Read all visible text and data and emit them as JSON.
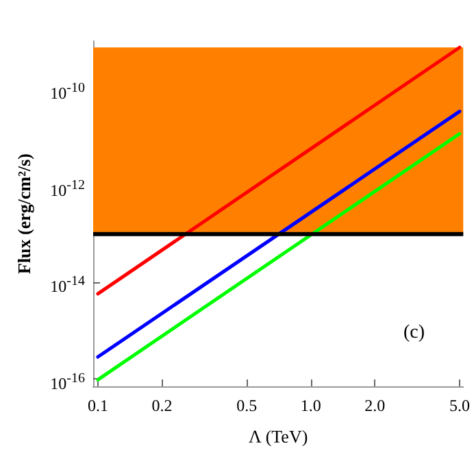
{
  "chart_data": {
    "type": "line",
    "xlabel": "Λ (TeV)",
    "ylabel": "Flux (erg/cm²/s)",
    "annotations": [
      "(c)"
    ],
    "x": [
      0.1,
      5
    ],
    "series": [
      {
        "color": "#ff0000",
        "values": [
          5.8e-15,
          7.4e-10
        ]
      },
      {
        "color": "#0000ff",
        "values": [
          2.85e-16,
          3.5e-11
        ]
      },
      {
        "color": "#00ff00",
        "values": [
          9.6e-17,
          1.2e-11
        ]
      }
    ],
    "bands": [
      {
        "axis": "y",
        "from": 1e-13,
        "to": 7.4e-10,
        "color": "#ff8000"
      }
    ],
    "ref_lines": [
      {
        "axis": "y",
        "value": 1e-13,
        "color": "#000000",
        "line_style": "solid"
      }
    ],
    "log": "xy",
    "xlim": [
      0.095,
      5.2
    ],
    "ylim": [
      7e-17,
      1e-09
    ],
    "xticks": [
      {
        "value": 0.1,
        "label": "0.1"
      },
      {
        "value": 0.2,
        "label": "0.2"
      },
      {
        "value": 0.5,
        "label": "0.5"
      },
      {
        "value": 1,
        "label": "1.0"
      },
      {
        "value": 2,
        "label": "2.0"
      },
      {
        "value": 5,
        "label": "5.0"
      }
    ],
    "yticks": [
      {
        "value": 1e-16,
        "label": "10$^{-16}$"
      },
      {
        "value": 1e-14,
        "label": "10$^{-14}$"
      },
      {
        "value": 1e-12,
        "label": "10$^{-12}$"
      },
      {
        "value": 1e-10,
        "label": "10$^{-10}$"
      }
    ],
    "grid": false,
    "marker": "none",
    "line_style": "solid"
  }
}
